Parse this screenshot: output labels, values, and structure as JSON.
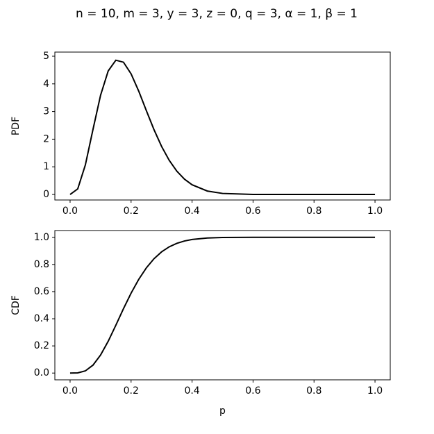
{
  "title": "n = 10, m = 3, y = 3, z = 0, q = 3, α = 1, β = 1",
  "chart_data": [
    {
      "type": "line",
      "y_label": "PDF",
      "x": [
        0,
        0.025,
        0.05,
        0.075,
        0.1,
        0.125,
        0.15,
        0.175,
        0.2,
        0.225,
        0.25,
        0.275,
        0.3,
        0.325,
        0.35,
        0.375,
        0.4,
        0.45,
        0.5,
        0.6,
        0.7,
        0.8,
        0.9,
        1.0
      ],
      "series": [
        {
          "color": "#000000",
          "values": [
            0,
            0.202,
            1.066,
            2.349,
            3.591,
            4.469,
            4.856,
            4.784,
            4.364,
            3.739,
            3.035,
            2.348,
            1.739,
            1.236,
            0.844,
            0.554,
            0.35,
            0.124,
            0.037,
            0.0018,
            0,
            0,
            0,
            0
          ]
        }
      ],
      "xlim": [
        -0.05,
        1.05
      ],
      "ylim": [
        -0.2,
        5.15
      ],
      "xticks": [
        {
          "value": 0,
          "label": "0.0"
        },
        0.2,
        0.4,
        0.6,
        0.8,
        {
          "value": 1,
          "label": "1.0"
        }
      ],
      "yticks": [
        0,
        1,
        2,
        3,
        4,
        5
      ],
      "grid": false
    },
    {
      "type": "line",
      "y_label": "CDF",
      "x_label": "p",
      "x": [
        0,
        0.025,
        0.05,
        0.075,
        0.1,
        0.125,
        0.15,
        0.175,
        0.2,
        0.225,
        0.25,
        0.275,
        0.3,
        0.325,
        0.35,
        0.375,
        0.4,
        0.45,
        0.5,
        0.6,
        0.7,
        0.8,
        0.9,
        1.0
      ],
      "series": [
        {
          "color": "#000000",
          "values": [
            0,
            0.0014,
            0.0159,
            0.0582,
            0.133,
            0.2346,
            0.3523,
            0.4739,
            0.5886,
            0.6901,
            0.7748,
            0.842,
            0.8929,
            0.9299,
            0.9556,
            0.9729,
            0.984,
            0.9951,
            0.9987,
            1,
            1,
            1,
            1,
            1
          ]
        }
      ],
      "xlim": [
        -0.05,
        1.05
      ],
      "ylim": [
        -0.05,
        1.05
      ],
      "xticks": [
        {
          "value": 0,
          "label": "0.0"
        },
        0.2,
        0.4,
        0.6,
        0.8,
        {
          "value": 1,
          "label": "1.0"
        }
      ],
      "yticks": [
        {
          "value": 0,
          "label": "0.0"
        },
        0.2,
        0.4,
        0.6,
        0.8,
        {
          "value": 1,
          "label": "1.0"
        }
      ],
      "grid": false
    }
  ]
}
